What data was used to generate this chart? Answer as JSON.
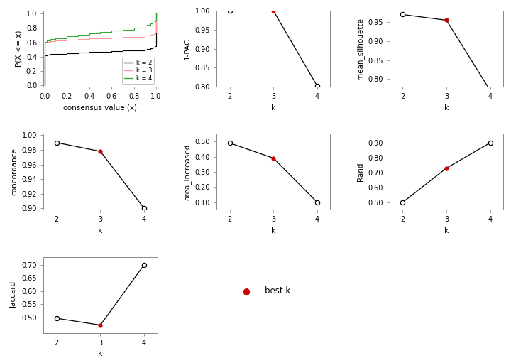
{
  "ecdf_k2_color": "#000000",
  "ecdf_k3_color": "#ff9999",
  "ecdf_k4_color": "#33aa33",
  "pac": {
    "k": [
      2,
      3,
      4
    ],
    "values": [
      1.0,
      1.0,
      0.802
    ],
    "best_k": 3,
    "ylabel": "1-PAC",
    "ylim": [
      0.8,
      1.0
    ],
    "yticks": [
      0.8,
      0.85,
      0.9,
      0.95,
      1.0
    ]
  },
  "mean_silhouette": {
    "k": [
      2,
      3,
      4
    ],
    "values": [
      0.97,
      0.955,
      0.77
    ],
    "best_k": 3,
    "ylabel": "mean_silhouette",
    "ylim": [
      0.78,
      0.98
    ],
    "yticks": [
      0.8,
      0.85,
      0.9,
      0.95
    ]
  },
  "concordance": {
    "k": [
      2,
      3,
      4
    ],
    "values": [
      0.99,
      0.978,
      0.9
    ],
    "best_k": 3,
    "ylabel": "concordance",
    "ylim": [
      0.898,
      1.002
    ],
    "yticks": [
      0.9,
      0.92,
      0.94,
      0.96,
      0.98,
      1.0
    ]
  },
  "area_increased": {
    "k": [
      2,
      3,
      4
    ],
    "values": [
      0.49,
      0.39,
      0.1
    ],
    "best_k": 3,
    "ylabel": "area_increased",
    "ylim": [
      0.05,
      0.55
    ],
    "yticks": [
      0.1,
      0.2,
      0.3,
      0.4,
      0.5
    ]
  },
  "rand": {
    "k": [
      2,
      3,
      4
    ],
    "values": [
      0.5,
      0.73,
      0.9
    ],
    "best_k": 3,
    "ylabel": "Rand",
    "ylim": [
      0.45,
      0.96
    ],
    "yticks": [
      0.5,
      0.6,
      0.7,
      0.8,
      0.9
    ]
  },
  "jaccard": {
    "k": [
      2,
      3,
      4
    ],
    "values": [
      0.496,
      0.47,
      0.7
    ],
    "best_k": 3,
    "ylabel": "Jaccard",
    "ylim": [
      0.44,
      0.73
    ],
    "yticks": [
      0.5,
      0.55,
      0.6,
      0.65,
      0.7
    ]
  },
  "line_color": "#000000",
  "best_k_color": "#cc0000",
  "background_color": "#ffffff"
}
